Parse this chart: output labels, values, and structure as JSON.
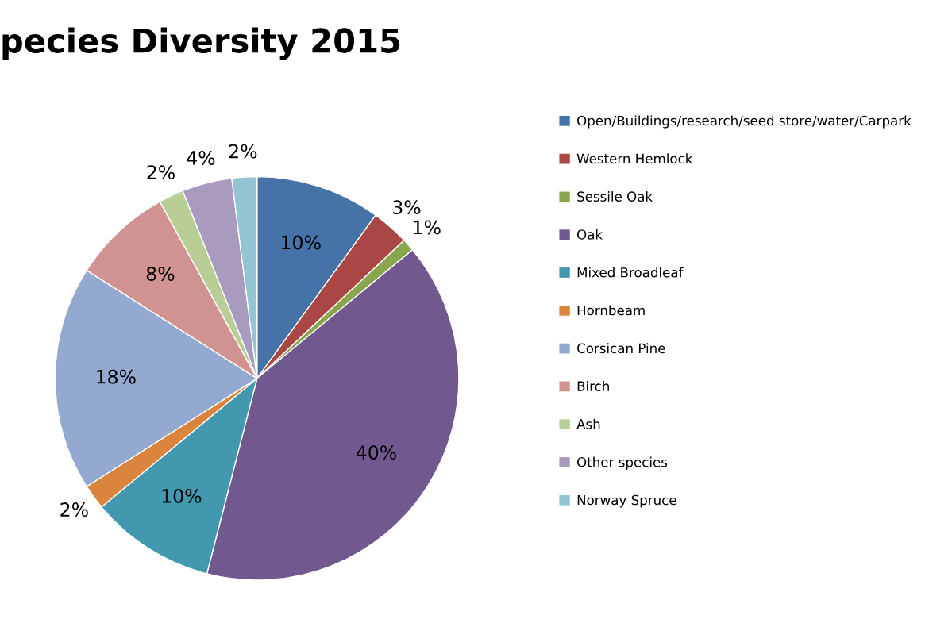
{
  "chart_data": {
    "type": "pie",
    "title": "pecies Diversity 2015",
    "categories": [
      "Open/Buildings/research/seed store/water/Carpark",
      "Western Hemlock",
      "Sessile Oak",
      "Oak",
      "Mixed Broadleaf",
      "Hornbeam",
      "Corsican Pine",
      "Birch",
      "Ash",
      "Other species",
      "Norway Spruce"
    ],
    "values": [
      10,
      3,
      1,
      40,
      10,
      2,
      18,
      8,
      2,
      4,
      2
    ],
    "value_labels": [
      "10%",
      "3%",
      "1%",
      "40%",
      "10%",
      "2%",
      "18%",
      "8%",
      "2%",
      "4%",
      "2%"
    ],
    "colors": [
      "#4572a7",
      "#aa4643",
      "#89a54e",
      "#71588f",
      "#4198af",
      "#db843d",
      "#93a9cf",
      "#d19392",
      "#b9cd96",
      "#a99bbd",
      "#92c4d3"
    ],
    "legend": "right"
  }
}
